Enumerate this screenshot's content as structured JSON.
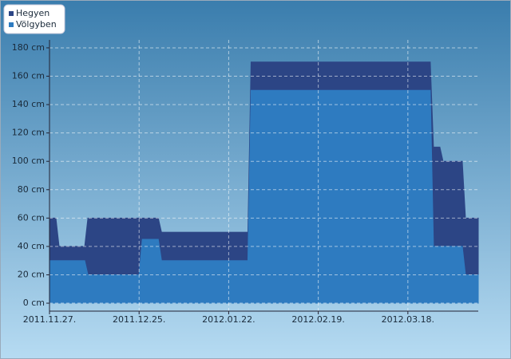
{
  "chart_data": {
    "type": "area",
    "x": [
      0,
      2,
      3,
      11,
      12,
      28,
      29,
      34,
      35,
      62,
      63,
      119,
      120,
      122,
      123,
      129,
      130,
      134
    ],
    "series": [
      {
        "name": "Hegyen",
        "color": "#2c4585",
        "values": [
          60,
          60,
          40,
          40,
          60,
          60,
          60,
          60,
          50,
          50,
          170,
          170,
          110,
          110,
          100,
          100,
          60,
          60
        ]
      },
      {
        "name": "Völgyben",
        "color": "#2e7bc0",
        "values": [
          30,
          30,
          30,
          30,
          20,
          20,
          45,
          45,
          30,
          30,
          150,
          150,
          40,
          40,
          40,
          40,
          20,
          20
        ]
      }
    ],
    "xlim": [
      0,
      134
    ],
    "xticks": [
      {
        "value": 0,
        "label": "2011.11.27."
      },
      {
        "value": 28,
        "label": "2011.12.25."
      },
      {
        "value": 56,
        "label": "2012.01.22."
      },
      {
        "value": 84,
        "label": "2012.02.19."
      },
      {
        "value": 112,
        "label": "2012.03.18."
      }
    ],
    "ylim": [
      -5.6,
      185.6
    ],
    "yticks": [
      {
        "value": 0,
        "label": "0 cm"
      },
      {
        "value": 20,
        "label": "20 cm"
      },
      {
        "value": 40,
        "label": "40 cm"
      },
      {
        "value": 60,
        "label": "60 cm"
      },
      {
        "value": 80,
        "label": "80 cm"
      },
      {
        "value": 100,
        "label": "100 cm"
      },
      {
        "value": 120,
        "label": "120 cm"
      },
      {
        "value": 140,
        "label": "140 cm"
      },
      {
        "value": 160,
        "label": "160 cm"
      },
      {
        "value": 180,
        "label": "180 cm"
      }
    ],
    "grid": true,
    "legend": "top-left"
  }
}
